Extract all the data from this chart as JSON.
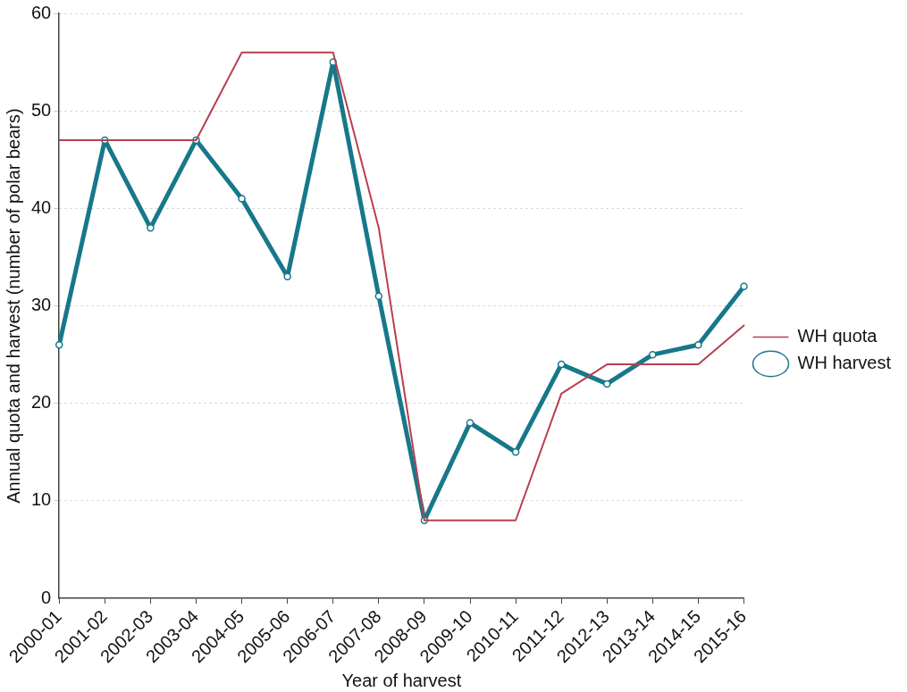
{
  "chart_data": {
    "type": "line",
    "xlabel": "Year of harvest",
    "ylabel": "Annual quota and harvest (number of polar bears)",
    "categories": [
      "2000-01",
      "2001-02",
      "2002-03",
      "2003-04",
      "2004-05",
      "2005-06",
      "2006-07",
      "2007-08",
      "2008-09",
      "2009-10",
      "2010-11",
      "2011-12",
      "2012-13",
      "2013-14",
      "2014-15",
      "2015-16"
    ],
    "series": [
      {
        "name": "WH quota",
        "color": "#b8404f",
        "marker": "none",
        "values": [
          47,
          47,
          47,
          47,
          56,
          56,
          56,
          38,
          8,
          8,
          8,
          21,
          24,
          24,
          24,
          28
        ]
      },
      {
        "name": "WH harvest",
        "color": "#17788a",
        "marker": "circle",
        "values": [
          26,
          47,
          38,
          47,
          41,
          33,
          55,
          31,
          8,
          18,
          15,
          24,
          22,
          25,
          26,
          32
        ]
      }
    ],
    "ylim": [
      0,
      60
    ],
    "yticks": [
      0,
      10,
      20,
      30,
      40,
      50,
      60
    ],
    "grid": "y",
    "legend": "right",
    "line_style": "solid"
  }
}
